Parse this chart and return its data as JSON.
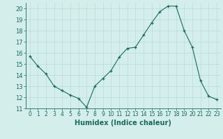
{
  "x": [
    0,
    1,
    2,
    3,
    4,
    5,
    6,
    7,
    8,
    9,
    10,
    11,
    12,
    13,
    14,
    15,
    16,
    17,
    18,
    19,
    20,
    21,
    22,
    23
  ],
  "y": [
    15.7,
    14.8,
    14.1,
    13.0,
    12.6,
    12.2,
    11.9,
    11.1,
    13.0,
    13.7,
    14.4,
    15.6,
    16.4,
    16.5,
    17.6,
    18.7,
    19.7,
    20.2,
    20.2,
    18.0,
    16.5,
    13.5,
    12.1,
    11.8
  ],
  "xlim": [
    -0.5,
    23.5
  ],
  "ylim": [
    11,
    20.5
  ],
  "xlabel": "Humidex (Indice chaleur)",
  "xticks": [
    0,
    1,
    2,
    3,
    4,
    5,
    6,
    7,
    8,
    9,
    10,
    11,
    12,
    13,
    14,
    15,
    16,
    17,
    18,
    19,
    20,
    21,
    22,
    23
  ],
  "yticks": [
    11,
    12,
    13,
    14,
    15,
    16,
    17,
    18,
    19,
    20
  ],
  "line_color": "#1a6b5a",
  "marker": "+",
  "bg_color": "#d4eeec",
  "grid_color": "#b8deda",
  "axis_color": "#1a6b5a",
  "label_color": "#1a6b5a",
  "tick_color": "#1a6b5a",
  "xlabel_fontsize": 7,
  "ytick_fontsize": 6,
  "xtick_fontsize": 5.5
}
